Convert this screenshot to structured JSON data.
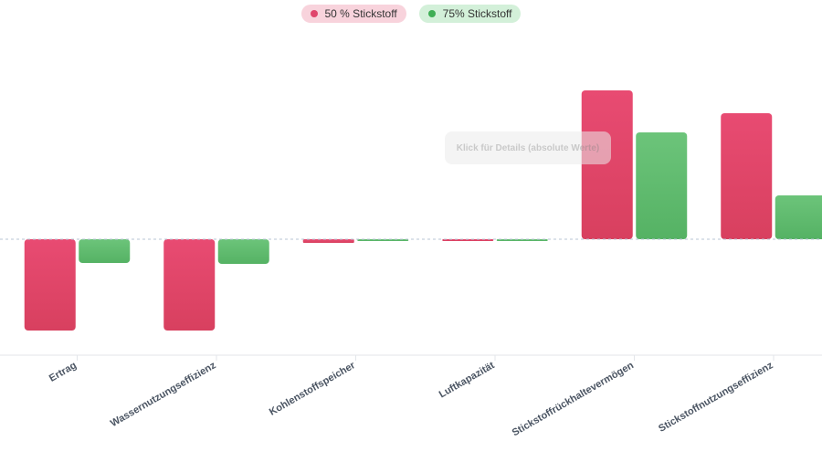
{
  "legend": {
    "items": [
      {
        "label": "50 % Stickstoff",
        "color": "#e0456c",
        "bg": "#f8d3dc"
      },
      {
        "label": "75% Stickstoff",
        "color": "#3fae55",
        "bg": "#d3f0d9"
      }
    ]
  },
  "tooltip": "Klick für Details (absolute Werte)",
  "chart_data": {
    "type": "bar",
    "categories": [
      "Ertrag",
      "Wassernutzungseffizienz",
      "Kohlenstoffspeicher",
      "Luftkapazität",
      "Stickstoffrückhaltevermögen",
      "Stickstoffnutzungseffizienz"
    ],
    "series": [
      {
        "name": "50 % Stickstoff",
        "color": "#e0456c",
        "values": [
          -1.0,
          -1.0,
          -0.04,
          -0.02,
          1.63,
          1.38
        ]
      },
      {
        "name": "75% Stickstoff",
        "color": "#5fbd6e",
        "values": [
          -0.26,
          -0.27,
          -0.02,
          -0.02,
          1.17,
          0.48
        ]
      }
    ],
    "ylim": [
      -1.27,
      2.6
    ],
    "grid": false,
    "legend_position": "top-center"
  }
}
